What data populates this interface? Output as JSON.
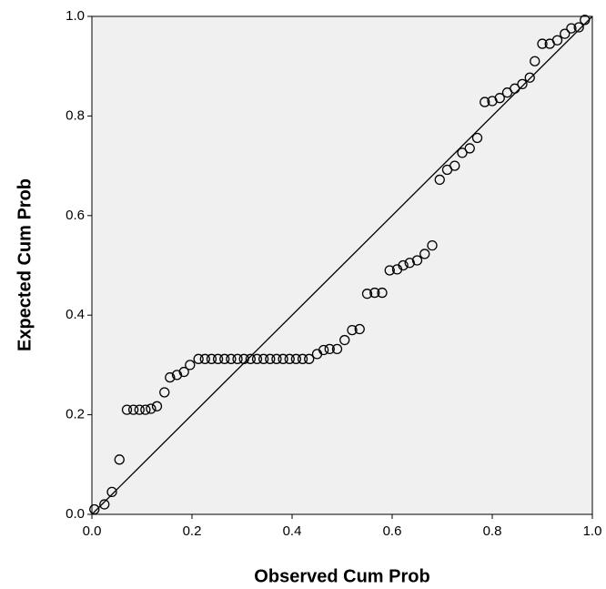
{
  "chart_data": {
    "type": "scatter",
    "x_label": "Observed Cum Prob",
    "y_label": "Expected Cum Prob",
    "xlim": [
      0,
      1
    ],
    "ylim": [
      0,
      1
    ],
    "xticks": [
      {
        "value": 0,
        "label": "0.0"
      },
      0.2,
      0.4,
      0.6,
      0.8,
      {
        "value": 1,
        "label": "1.0"
      }
    ],
    "yticks": [
      {
        "value": 0,
        "label": "0.0"
      },
      0.2,
      0.4,
      0.6,
      0.8,
      {
        "value": 1,
        "label": "1.0"
      }
    ],
    "color": "#000000",
    "x": [
      0.005,
      0.025,
      0.04,
      0.055,
      0.07,
      0.083,
      0.095,
      0.107,
      0.118,
      0.13,
      0.145,
      0.156,
      0.17,
      0.184,
      0.196,
      0.213,
      0.226,
      0.239,
      0.252,
      0.265,
      0.278,
      0.291,
      0.304,
      0.317,
      0.33,
      0.343,
      0.356,
      0.369,
      0.382,
      0.395,
      0.408,
      0.421,
      0.434,
      0.45,
      0.463,
      0.475,
      0.49,
      0.505,
      0.52,
      0.535,
      0.55,
      0.565,
      0.58,
      0.595,
      0.61,
      0.622,
      0.635,
      0.65,
      0.665,
      0.68,
      0.695,
      0.71,
      0.725,
      0.74,
      0.755,
      0.77,
      0.785,
      0.8,
      0.815,
      0.83,
      0.845,
      0.86,
      0.875,
      0.885,
      0.9,
      0.915,
      0.93,
      0.945,
      0.958,
      0.973,
      0.985
    ],
    "values": [
      0.01,
      0.02,
      0.045,
      0.11,
      0.21,
      0.21,
      0.21,
      0.21,
      0.212,
      0.217,
      0.245,
      0.275,
      0.28,
      0.286,
      0.3,
      0.312,
      0.312,
      0.312,
      0.312,
      0.312,
      0.312,
      0.312,
      0.312,
      0.312,
      0.312,
      0.312,
      0.312,
      0.312,
      0.312,
      0.312,
      0.312,
      0.312,
      0.312,
      0.322,
      0.33,
      0.332,
      0.332,
      0.35,
      0.37,
      0.372,
      0.443,
      0.445,
      0.445,
      0.49,
      0.492,
      0.5,
      0.505,
      0.51,
      0.523,
      0.54,
      0.672,
      0.692,
      0.7,
      0.726,
      0.735,
      0.756,
      0.828,
      0.83,
      0.836,
      0.847,
      0.855,
      0.864,
      0.877,
      0.91,
      0.945,
      0.945,
      0.952,
      0.965,
      0.976,
      0.978,
      0.993
    ]
  }
}
